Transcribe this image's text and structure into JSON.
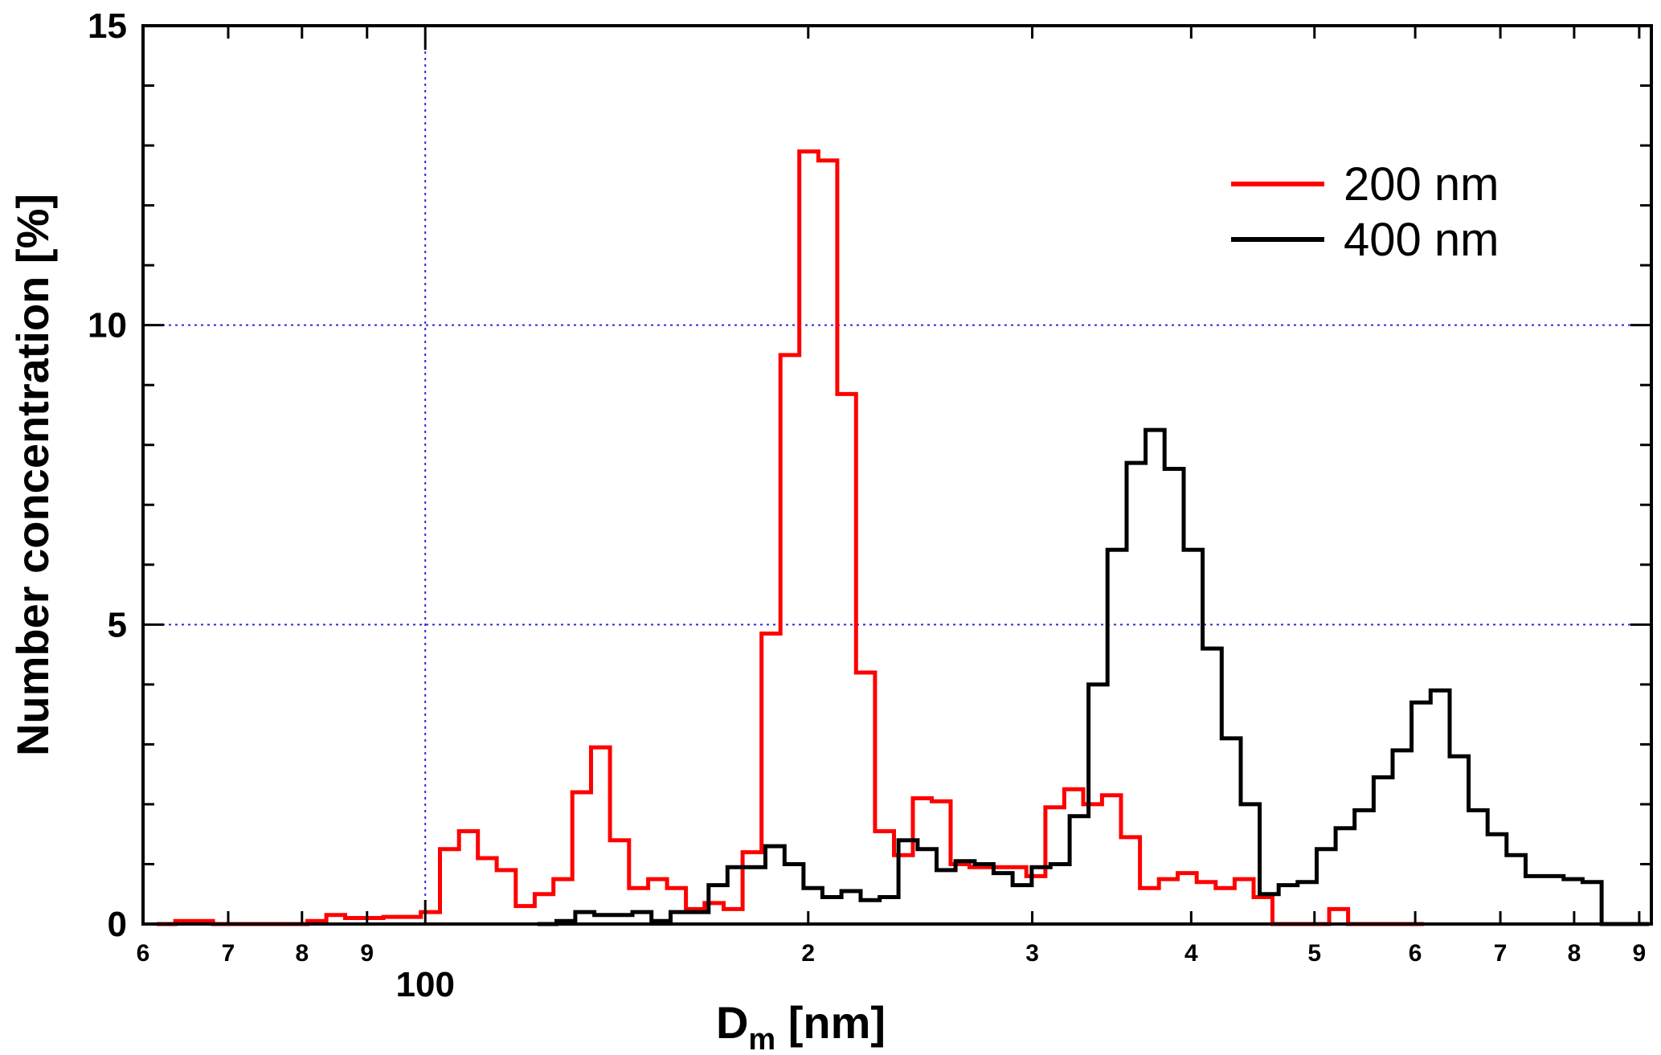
{
  "chart_data": {
    "type": "line",
    "style": "step histogram",
    "xlabel": {
      "main": "D",
      "subscript": "m",
      "suffix": " [nm]"
    },
    "ylabel": "Number concentration [%]",
    "xscale": "log",
    "xlim": [
      60,
      920
    ],
    "ylim": [
      0,
      15
    ],
    "grid": "dotted blue at x=100 and y=5, y=10",
    "legend_position": "top-right",
    "y_ticks": [
      {
        "value": 0,
        "label": "0"
      },
      {
        "value": 5,
        "label": "5"
      },
      {
        "value": 10,
        "label": "10"
      },
      {
        "value": 15,
        "label": "15"
      }
    ],
    "y_minor_ticks": [
      1,
      2,
      3,
      4,
      6,
      7,
      8,
      9,
      11,
      12,
      13,
      14
    ],
    "x_ticks": [
      {
        "value": 60,
        "label": "6",
        "kind": "minor"
      },
      {
        "value": 70,
        "label": "7",
        "kind": "minor"
      },
      {
        "value": 80,
        "label": "8",
        "kind": "minor"
      },
      {
        "value": 90,
        "label": "9",
        "kind": "minor"
      },
      {
        "value": 100,
        "label": "100",
        "kind": "major"
      },
      {
        "value": 200,
        "label": "2",
        "kind": "minor"
      },
      {
        "value": 300,
        "label": "3",
        "kind": "minor"
      },
      {
        "value": 400,
        "label": "4",
        "kind": "minor"
      },
      {
        "value": 500,
        "label": "5",
        "kind": "minor"
      },
      {
        "value": 600,
        "label": "6",
        "kind": "minor"
      },
      {
        "value": 700,
        "label": "7",
        "kind": "minor"
      },
      {
        "value": 800,
        "label": "8",
        "kind": "minor"
      },
      {
        "value": 900,
        "label": "9",
        "kind": "minor"
      }
    ],
    "series": [
      {
        "name": "200 nm",
        "color": "#ff0000",
        "bin_edges": [
          61.5,
          63.6,
          65.8,
          68.1,
          70.5,
          72.9,
          75.5,
          78.1,
          80.8,
          83.6,
          86.5,
          89.6,
          92.7,
          95.9,
          99.2,
          102.7,
          106.3,
          110.0,
          113.8,
          117.8,
          121.9,
          126.1,
          130.5,
          135.0,
          139.7,
          144.6,
          149.7,
          154.9,
          160.3,
          165.8,
          171.6,
          177.6,
          183.8,
          190.2,
          196.8,
          203.7,
          210.8,
          218.1,
          225.7,
          233.6,
          241.7,
          250.1,
          258.8,
          267.8,
          277.2,
          286.8,
          296.8,
          307.2,
          317.9,
          329.0,
          340.4,
          352.3,
          364.6,
          377.3,
          390.4,
          404.0,
          418.1,
          432.7,
          447.8,
          463.4,
          479.5,
          496.2,
          513.5,
          531.4,
          549.9,
          569.1,
          588.9,
          609.4
        ],
        "values": [
          0.0,
          0.05,
          0.05,
          0.0,
          0.0,
          0.0,
          0.0,
          0.0,
          0.05,
          0.15,
          0.1,
          0.1,
          0.12,
          0.12,
          0.2,
          1.25,
          1.55,
          1.1,
          0.9,
          0.3,
          0.5,
          0.75,
          2.2,
          2.95,
          1.4,
          0.6,
          0.75,
          0.6,
          0.25,
          0.35,
          0.25,
          1.2,
          4.85,
          9.5,
          12.9,
          12.75,
          8.85,
          4.2,
          1.55,
          1.15,
          2.1,
          2.05,
          1.0,
          0.95,
          0.95,
          0.95,
          0.8,
          1.95,
          2.25,
          2.0,
          2.15,
          1.45,
          0.6,
          0.75,
          0.85,
          0.7,
          0.6,
          0.75,
          0.45,
          0.0,
          0.0,
          0.0,
          0.25,
          0.0,
          0.0,
          0.0,
          0.0
        ]
      },
      {
        "name": "400 nm",
        "color": "#000000",
        "bin_edges": [
          122.5,
          126.8,
          131.2,
          135.8,
          140.6,
          145.5,
          150.6,
          155.9,
          161.3,
          167.0,
          172.8,
          178.9,
          185.1,
          191.6,
          198.3,
          205.2,
          212.4,
          219.9,
          227.6,
          235.5,
          243.8,
          252.3,
          261.1,
          270.3,
          279.7,
          289.5,
          299.7,
          310.1,
          321.0,
          332.2,
          343.8,
          355.9,
          368.3,
          381.2,
          394.6,
          408.4,
          422.7,
          437.5,
          452.8,
          468.6,
          485.0,
          502.0,
          519.5,
          537.7,
          556.5,
          576.0,
          596.1,
          617.0,
          638.6,
          660.9,
          684.0,
          707.9,
          732.7,
          758.3,
          784.9,
          812.3,
          840.8,
          870.2,
          900.7,
          916.0
        ],
        "values": [
          0.0,
          0.05,
          0.2,
          0.15,
          0.15,
          0.2,
          0.05,
          0.2,
          0.2,
          0.65,
          0.95,
          0.95,
          1.3,
          1.0,
          0.6,
          0.45,
          0.55,
          0.4,
          0.45,
          1.4,
          1.25,
          0.9,
          1.05,
          1.0,
          0.85,
          0.65,
          0.95,
          1.0,
          1.8,
          4.0,
          6.25,
          7.7,
          8.25,
          7.6,
          6.25,
          4.6,
          3.1,
          2.0,
          0.5,
          0.65,
          0.7,
          1.25,
          1.6,
          1.9,
          2.45,
          2.9,
          3.7,
          3.9,
          2.8,
          1.9,
          1.5,
          1.15,
          0.8,
          0.8,
          0.75,
          0.7,
          0.0,
          0.0,
          0.0
        ]
      }
    ]
  }
}
